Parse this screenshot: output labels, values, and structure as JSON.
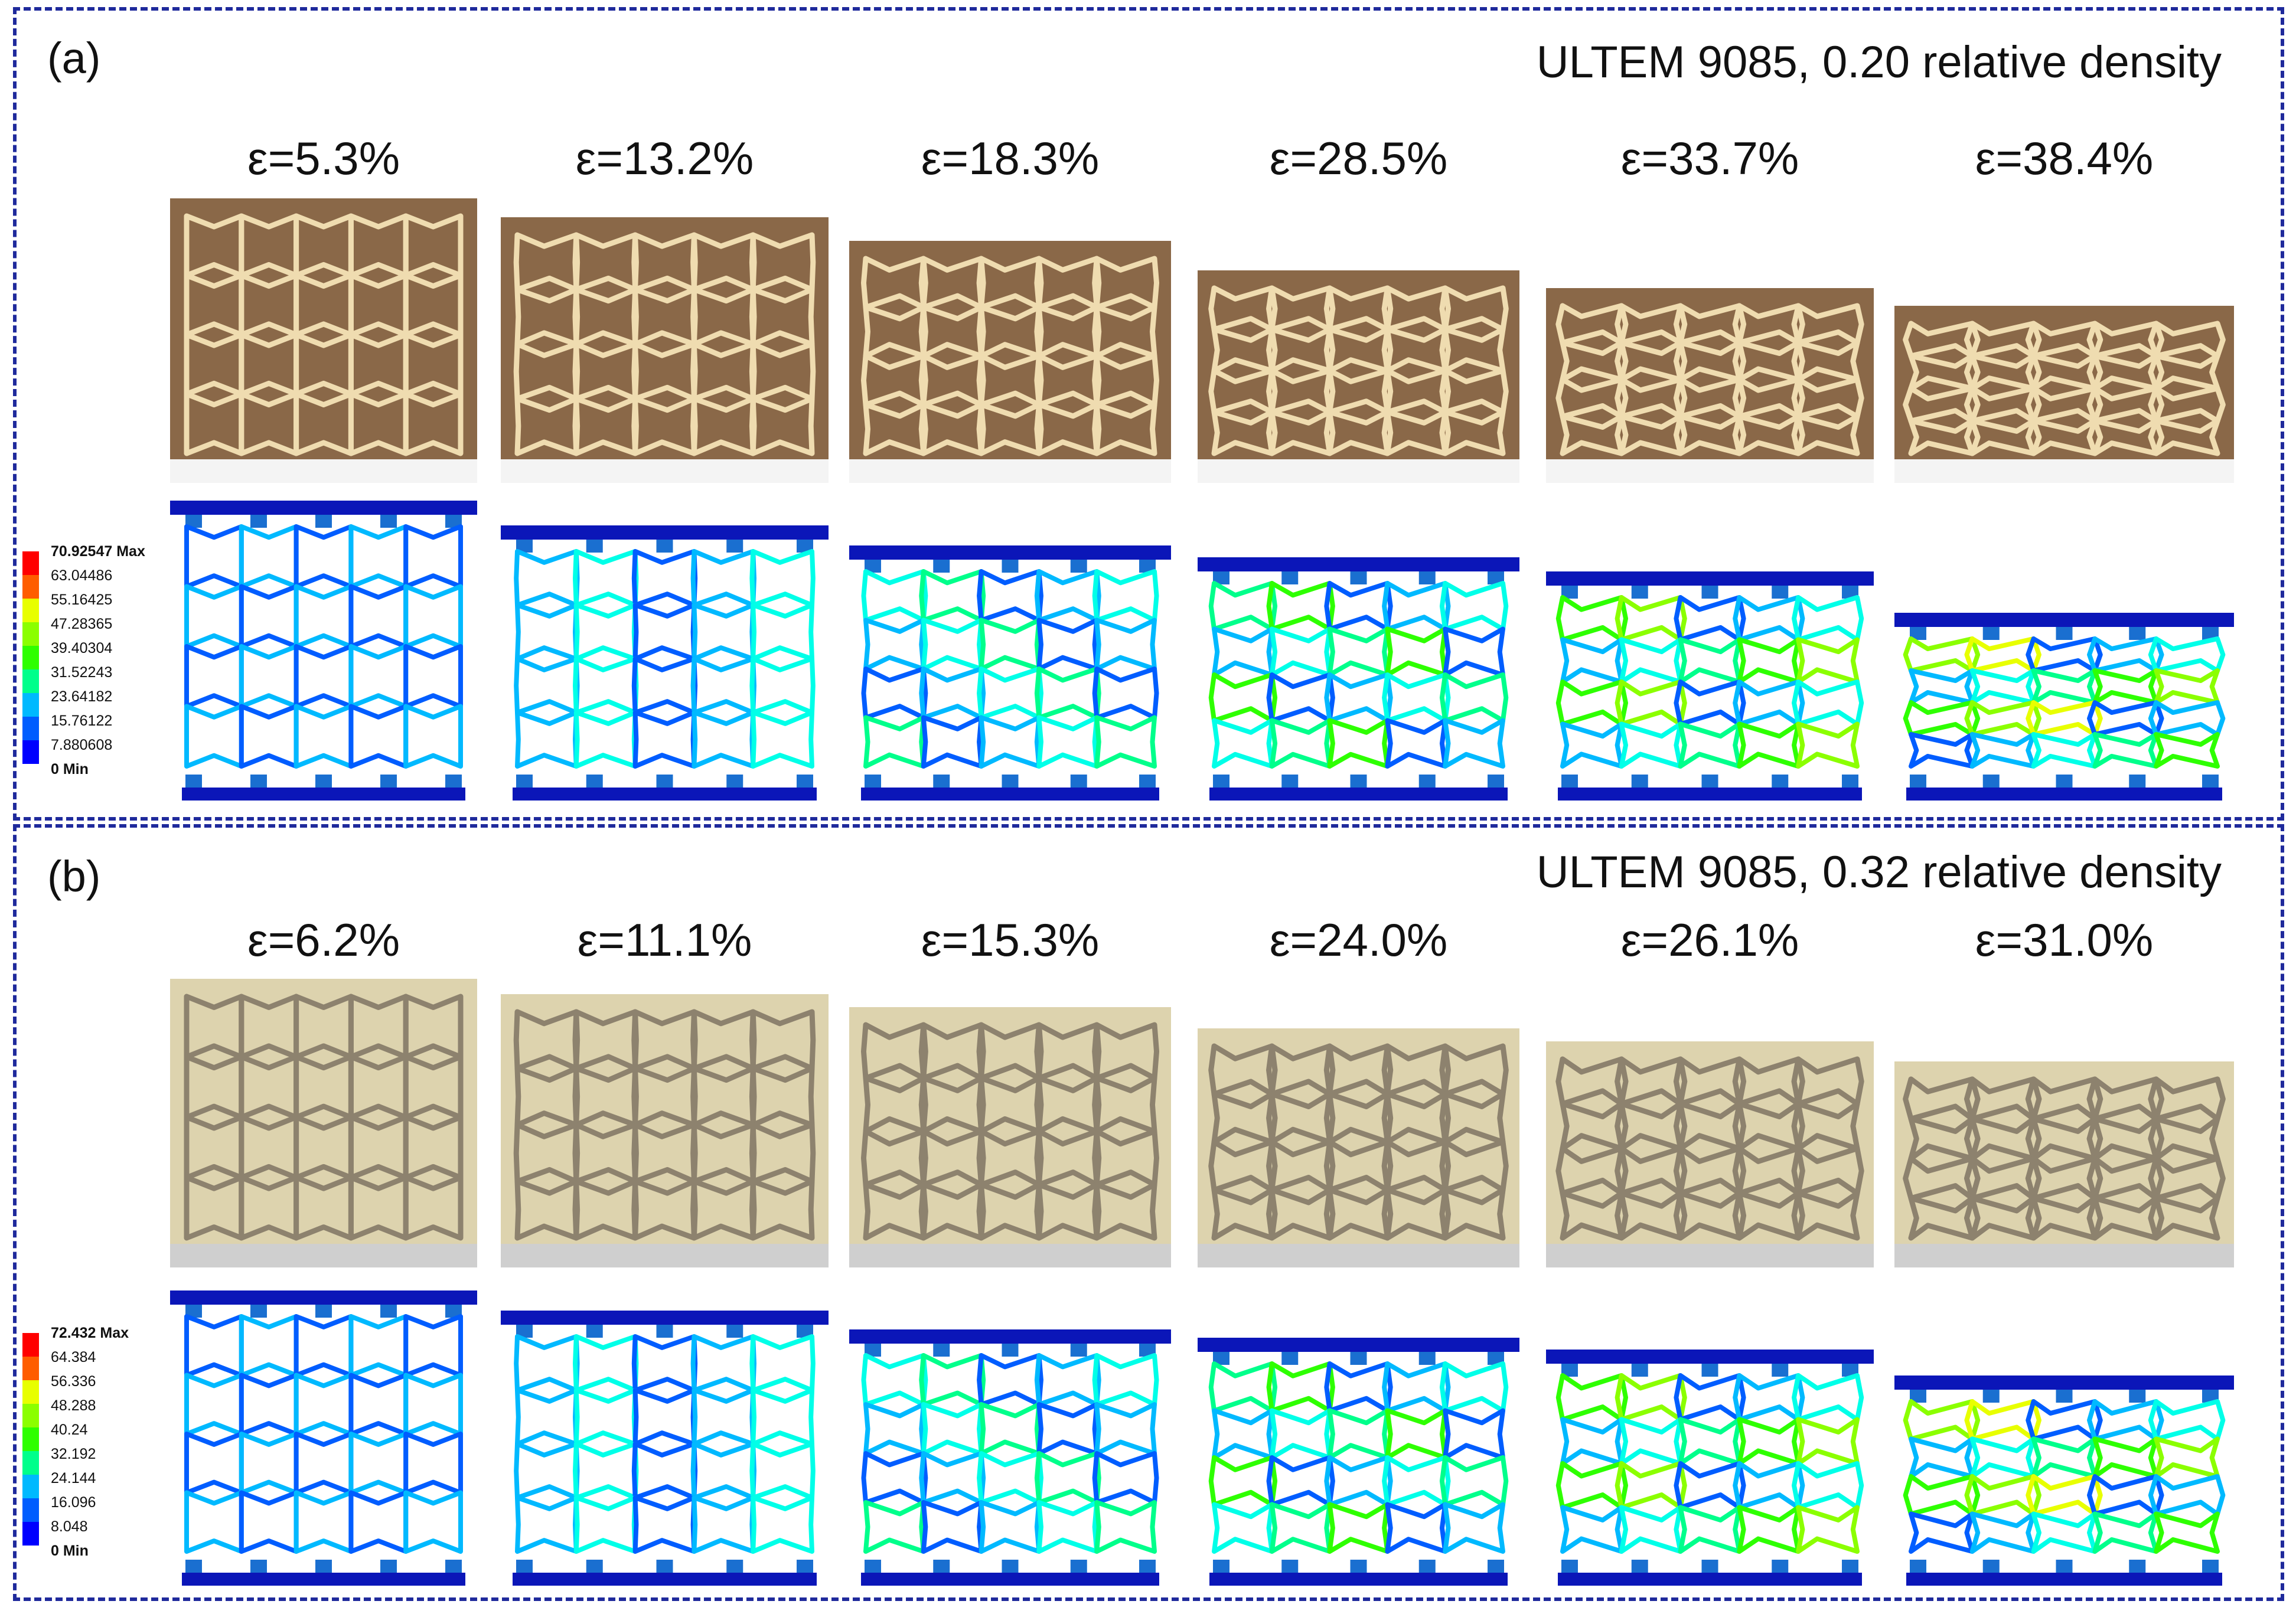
{
  "panels": [
    {
      "label": "(a)",
      "title": "ULTEM 9085, 0.20 relative density",
      "strains": [
        "ε=5.3%",
        "ε=13.2%",
        "ε=18.3%",
        "ε=28.5%",
        "ε=33.7%",
        "ε=38.4%"
      ],
      "legend": {
        "max_label": "70.92547 Max",
        "ticks": [
          "63.04486",
          "55.16425",
          "47.28365",
          "39.40304",
          "31.52243",
          "23.64182",
          "15.76122",
          "7.880608"
        ],
        "min_label": "0 Min"
      },
      "photo_background": "#8a6848",
      "photo_strut": "#efdcb0"
    },
    {
      "label": "(b)",
      "title": "ULTEM 9085, 0.32 relative density",
      "strains": [
        "ε=6.2%",
        "ε=11.1%",
        "ε=15.3%",
        "ε=24.0%",
        "ε=26.1%",
        "ε=31.0%"
      ],
      "legend": {
        "max_label": "72.432 Max",
        "ticks": [
          "64.384",
          "56.336",
          "48.288",
          "40.24",
          "32.192",
          "24.144",
          "16.096",
          "8.048"
        ],
        "min_label": "0 Min"
      },
      "photo_background": "#ddd3ae",
      "photo_strut": "#8d826e"
    }
  ],
  "colors": {
    "frame": "#1f2a9c",
    "plate": "#0b16b8",
    "contour": [
      "#0000ff",
      "#005dff",
      "#00b9ff",
      "#00ffe8",
      "#00ff8b",
      "#2eff00",
      "#8bff00",
      "#e8ff00",
      "#ffb900",
      "#ff5d00",
      "#ff0000"
    ]
  }
}
